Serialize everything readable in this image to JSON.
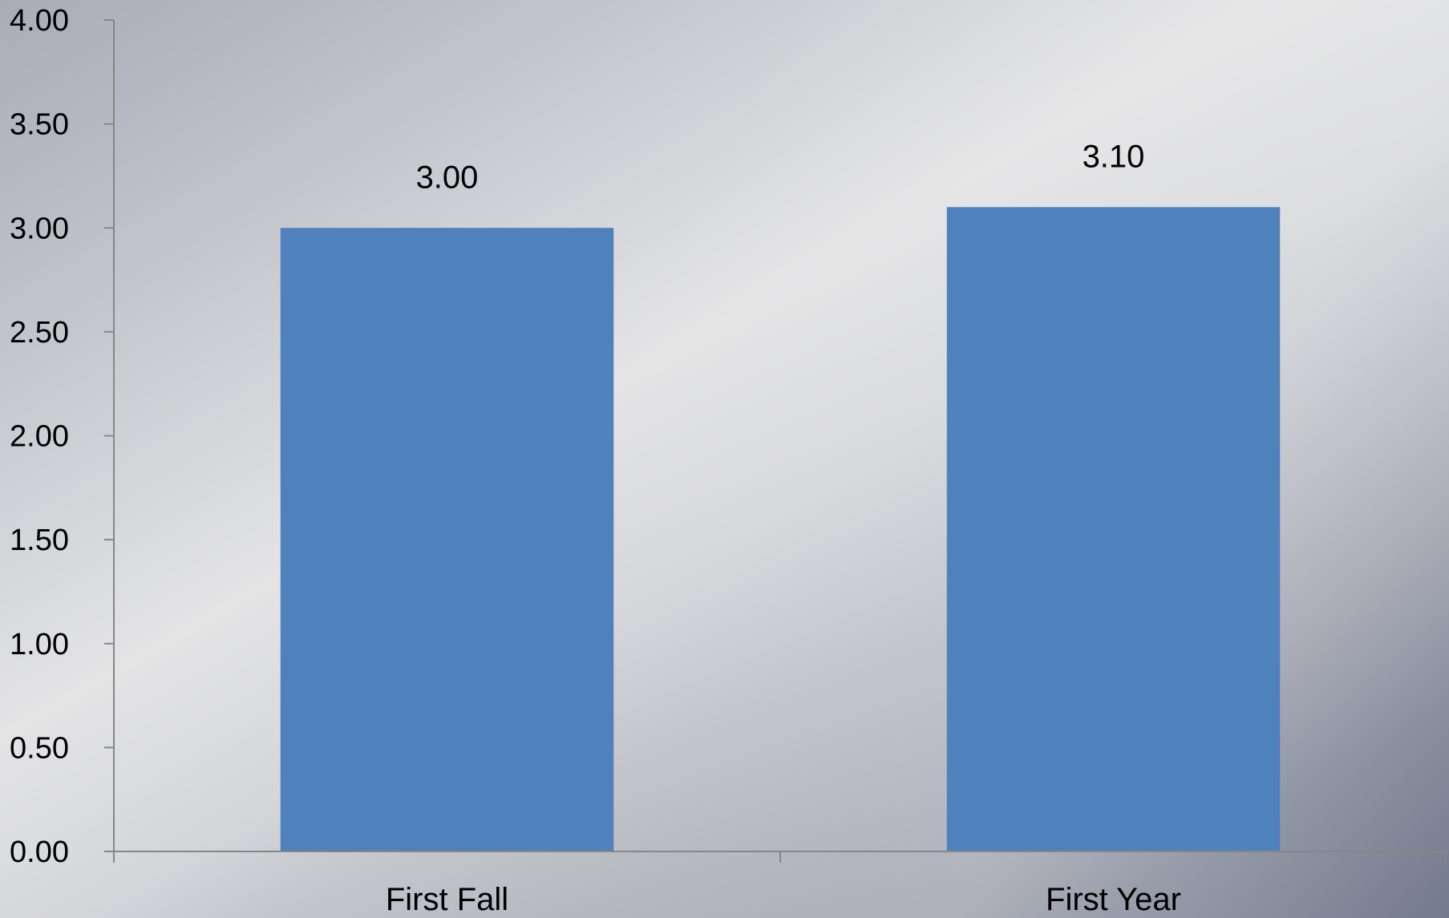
{
  "chart_data": {
    "type": "bar",
    "categories": [
      "First Fall",
      "First Year"
    ],
    "values": [
      3.0,
      3.1
    ],
    "data_labels": [
      "3.00",
      "3.10"
    ],
    "title": "",
    "xlabel": "",
    "ylabel": "",
    "ylim": [
      0,
      4
    ],
    "yticks": [
      "0.00",
      "0.50",
      "1.00",
      "1.50",
      "2.00",
      "2.50",
      "3.00",
      "3.50",
      "4.00"
    ],
    "grid": false,
    "legend": "none",
    "colors": {
      "bar": "#4f81bd",
      "axis": "#868686"
    }
  }
}
